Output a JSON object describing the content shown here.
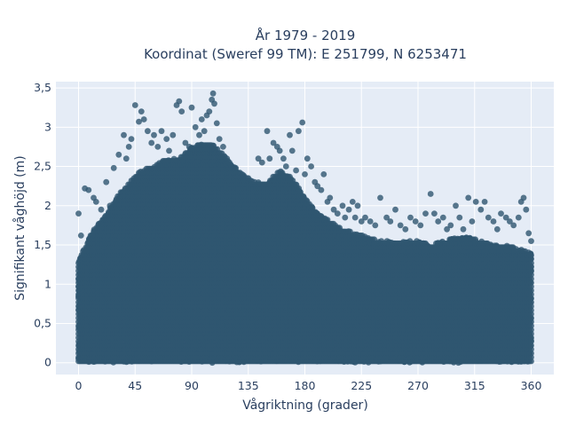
{
  "chart_data": {
    "type": "scatter",
    "title_lines": [
      "År 1979 - 2019",
      "Koordinat (Sweref 99 TM): E 251799, N 6253471"
    ],
    "xlabel": "Vågriktning (grader)",
    "ylabel": "Signifikant våghöjd (m)",
    "xlim": [
      -18,
      378
    ],
    "ylim": [
      -0.15,
      3.58
    ],
    "x_ticks": [
      0,
      45,
      90,
      135,
      180,
      225,
      270,
      315,
      360
    ],
    "x_tick_labels": [
      "0",
      "45",
      "90",
      "135",
      "180",
      "225",
      "270",
      "315",
      "360"
    ],
    "y_ticks": [
      0,
      0.5,
      1,
      1.5,
      2,
      2.5,
      3,
      3.5
    ],
    "y_tick_labels": [
      "0",
      "0,5",
      "1",
      "1,5",
      "2",
      "2,5",
      "3",
      "3,5"
    ],
    "grid": true,
    "legend": "none",
    "series": [
      {
        "marker_color": "#2f5670",
        "envelope": {
          "x": [
            0,
            10,
            20,
            30,
            40,
            50,
            60,
            70,
            80,
            90,
            100,
            110,
            120,
            130,
            140,
            150,
            160,
            170,
            180,
            190,
            200,
            210,
            220,
            230,
            240,
            250,
            260,
            270,
            280,
            290,
            300,
            310,
            320,
            330,
            340,
            350,
            360
          ],
          "y_max": [
            1.3,
            1.65,
            1.85,
            2.1,
            2.3,
            2.45,
            2.5,
            2.6,
            2.6,
            2.75,
            2.8,
            2.75,
            2.55,
            2.4,
            2.3,
            2.3,
            2.45,
            2.35,
            2.1,
            1.9,
            1.8,
            1.7,
            1.65,
            1.6,
            1.55,
            1.55,
            1.55,
            1.55,
            1.5,
            1.55,
            1.6,
            1.6,
            1.55,
            1.5,
            1.5,
            1.45,
            1.4
          ]
        },
        "outliers": [
          [
            0,
            1.9
          ],
          [
            2,
            1.62
          ],
          [
            5,
            2.22
          ],
          [
            8,
            2.2
          ],
          [
            12,
            2.1
          ],
          [
            14,
            2.05
          ],
          [
            18,
            1.95
          ],
          [
            22,
            2.3
          ],
          [
            25,
            2.0
          ],
          [
            28,
            2.48
          ],
          [
            32,
            2.65
          ],
          [
            36,
            2.9
          ],
          [
            38,
            2.6
          ],
          [
            40,
            2.75
          ],
          [
            42,
            2.85
          ],
          [
            45,
            3.28
          ],
          [
            48,
            3.07
          ],
          [
            50,
            3.2
          ],
          [
            52,
            3.1
          ],
          [
            55,
            2.95
          ],
          [
            58,
            2.8
          ],
          [
            60,
            2.9
          ],
          [
            63,
            2.75
          ],
          [
            66,
            2.95
          ],
          [
            70,
            2.85
          ],
          [
            72,
            2.7
          ],
          [
            75,
            2.9
          ],
          [
            78,
            3.28
          ],
          [
            80,
            3.33
          ],
          [
            82,
            3.2
          ],
          [
            85,
            2.8
          ],
          [
            88,
            2.75
          ],
          [
            90,
            3.25
          ],
          [
            93,
            3.0
          ],
          [
            96,
            2.9
          ],
          [
            98,
            3.1
          ],
          [
            100,
            2.95
          ],
          [
            102,
            3.15
          ],
          [
            104,
            3.2
          ],
          [
            106,
            3.35
          ],
          [
            107,
            3.43
          ],
          [
            108,
            3.3
          ],
          [
            110,
            3.05
          ],
          [
            112,
            2.85
          ],
          [
            115,
            2.75
          ],
          [
            118,
            2.6
          ],
          [
            120,
            2.55
          ],
          [
            125,
            2.48
          ],
          [
            130,
            2.4
          ],
          [
            135,
            2.35
          ],
          [
            140,
            2.3
          ],
          [
            143,
            2.6
          ],
          [
            146,
            2.55
          ],
          [
            150,
            2.95
          ],
          [
            152,
            2.6
          ],
          [
            155,
            2.8
          ],
          [
            158,
            2.75
          ],
          [
            160,
            2.7
          ],
          [
            163,
            2.6
          ],
          [
            165,
            2.5
          ],
          [
            168,
            2.9
          ],
          [
            170,
            2.7
          ],
          [
            173,
            2.45
          ],
          [
            175,
            2.95
          ],
          [
            178,
            3.06
          ],
          [
            180,
            2.4
          ],
          [
            182,
            2.6
          ],
          [
            185,
            2.5
          ],
          [
            188,
            2.3
          ],
          [
            190,
            2.25
          ],
          [
            193,
            2.2
          ],
          [
            195,
            2.4
          ],
          [
            198,
            2.05
          ],
          [
            200,
            2.1
          ],
          [
            203,
            1.95
          ],
          [
            206,
            1.9
          ],
          [
            210,
            2.0
          ],
          [
            212,
            1.85
          ],
          [
            215,
            1.95
          ],
          [
            218,
            2.05
          ],
          [
            220,
            1.85
          ],
          [
            222,
            2.0
          ],
          [
            225,
            1.8
          ],
          [
            228,
            1.85
          ],
          [
            232,
            1.8
          ],
          [
            236,
            1.75
          ],
          [
            240,
            2.1
          ],
          [
            245,
            1.85
          ],
          [
            248,
            1.8
          ],
          [
            252,
            1.95
          ],
          [
            256,
            1.75
          ],
          [
            260,
            1.7
          ],
          [
            264,
            1.85
          ],
          [
            268,
            1.8
          ],
          [
            272,
            1.75
          ],
          [
            276,
            1.9
          ],
          [
            280,
            2.15
          ],
          [
            283,
            1.9
          ],
          [
            286,
            1.8
          ],
          [
            290,
            1.85
          ],
          [
            293,
            1.7
          ],
          [
            296,
            1.75
          ],
          [
            300,
            2.0
          ],
          [
            303,
            1.85
          ],
          [
            306,
            1.7
          ],
          [
            310,
            2.1
          ],
          [
            313,
            1.8
          ],
          [
            316,
            2.05
          ],
          [
            320,
            1.95
          ],
          [
            323,
            2.05
          ],
          [
            326,
            1.85
          ],
          [
            330,
            1.8
          ],
          [
            333,
            1.7
          ],
          [
            336,
            1.9
          ],
          [
            340,
            1.85
          ],
          [
            343,
            1.8
          ],
          [
            346,
            1.75
          ],
          [
            350,
            1.85
          ],
          [
            352,
            2.05
          ],
          [
            354,
            2.1
          ],
          [
            356,
            1.95
          ],
          [
            358,
            1.65
          ],
          [
            360,
            1.55
          ]
        ]
      }
    ]
  }
}
